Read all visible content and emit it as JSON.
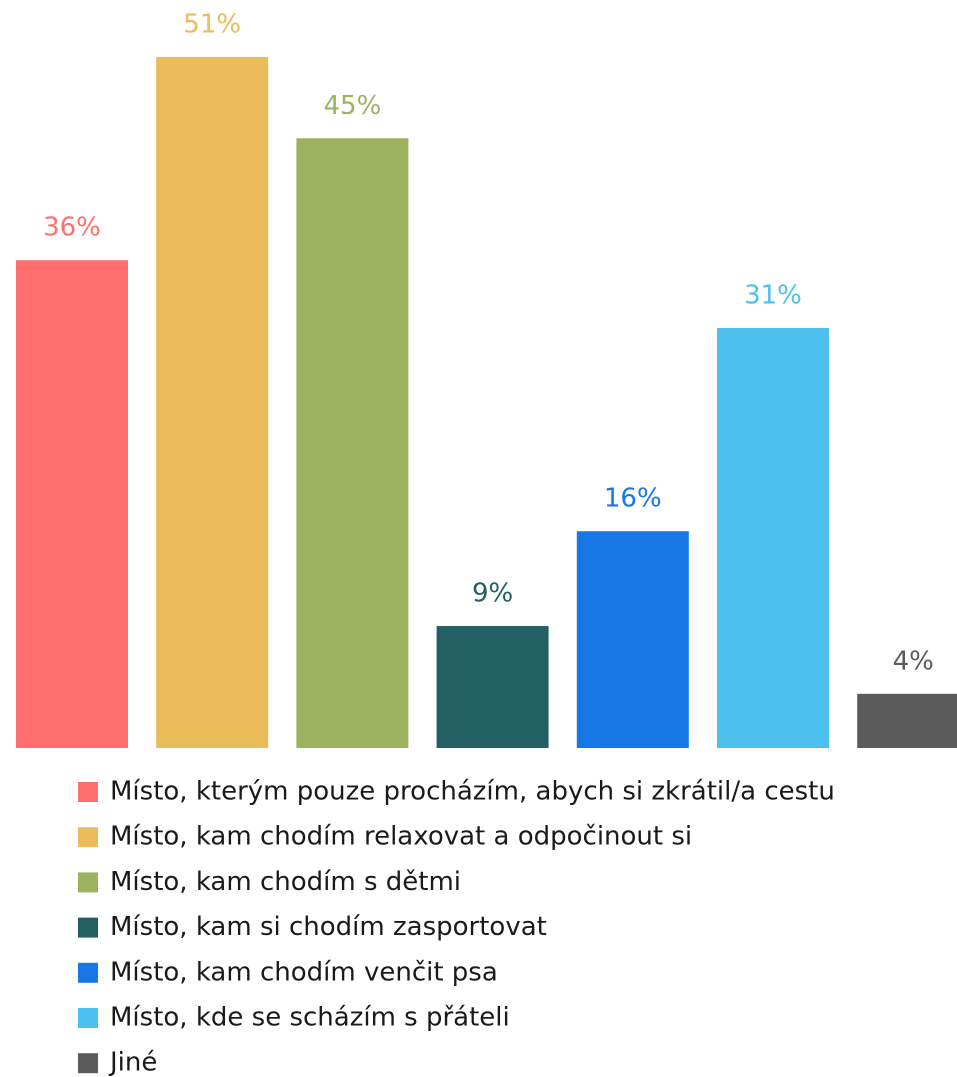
{
  "chart_data": {
    "type": "bar",
    "categories": [
      "Místo, kterým pouze procházím, abych si zkrátil/a cestu",
      "Místo, kam chodím relaxovat a odpočinout si",
      "Místo, kam chodím s dětmi",
      "Místo, kam si chodím zasportovat",
      "Místo, kam chodím venčit psa",
      "Místo, kde se scházím s přáteli",
      "Jiné"
    ],
    "values": [
      36,
      51,
      45,
      9,
      16,
      31,
      4
    ],
    "value_labels": [
      "36%",
      "51%",
      "45%",
      "9%",
      "16%",
      "31%",
      "4%"
    ],
    "colors": [
      "#ff6f6f",
      "#ebbd5a",
      "#9db25f",
      "#236063",
      "#1877e6",
      "#4ec0ef",
      "#5b5b5b"
    ]
  }
}
